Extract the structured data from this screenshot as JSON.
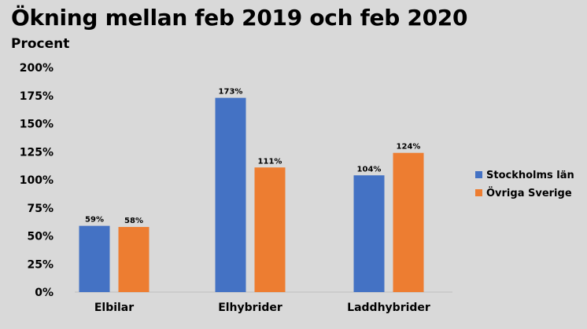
{
  "header": {
    "title": "Ökning mellan feb 2019 och feb 2020",
    "subtitle": "Procent"
  },
  "chart_data": {
    "type": "bar",
    "title": "Ökning mellan feb 2019 och feb 2020",
    "ylabel": "Procent",
    "xlabel": "",
    "categories": [
      "Elbilar",
      "Elhybrider",
      "Laddhybrider"
    ],
    "series": [
      {
        "name": "Stockholms län",
        "color": "#4472c4",
        "values": [
          59,
          173,
          104
        ]
      },
      {
        "name": "Övriga Sverige",
        "color": "#ed7d31",
        "values": [
          58,
          111,
          124
        ]
      }
    ],
    "ylim": [
      0,
      200
    ],
    "yticks": [
      0,
      25,
      50,
      75,
      100,
      125,
      150,
      175,
      200
    ],
    "ytick_suffix": "%",
    "data_label_suffix": "%",
    "grid": false,
    "legend_position": "right"
  }
}
